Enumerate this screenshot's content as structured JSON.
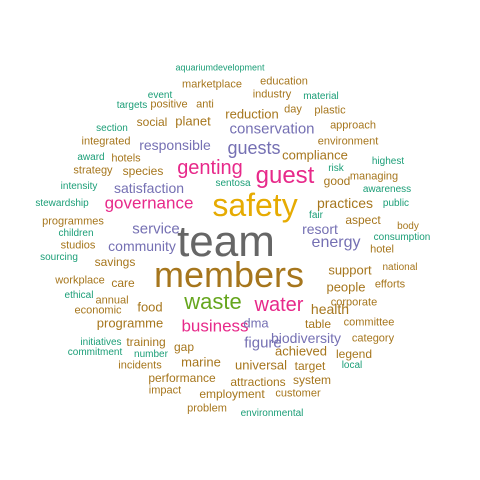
{
  "palette": {
    "teal": "#1b9e77",
    "orange": "#d95f02",
    "purple": "#7570b3",
    "pink": "#e7298a",
    "green": "#66a61e",
    "gold": "#e6ab02",
    "brown": "#a6761d",
    "gray": "#666666"
  },
  "words": [
    {
      "text": "team",
      "color": "gray"
    },
    {
      "text": "members",
      "color": "brown"
    },
    {
      "text": "safety",
      "color": "gold"
    },
    {
      "text": "guest",
      "color": "pink"
    },
    {
      "text": "genting",
      "color": "pink"
    },
    {
      "text": "waste",
      "color": "green"
    },
    {
      "text": "water",
      "color": "pink"
    },
    {
      "text": "business",
      "color": "pink"
    },
    {
      "text": "governance",
      "color": "pink"
    },
    {
      "text": "guests",
      "color": "purple"
    },
    {
      "text": "conservation",
      "color": "purple"
    },
    {
      "text": "energy",
      "color": "purple"
    },
    {
      "text": "service",
      "color": "purple"
    },
    {
      "text": "community",
      "color": "purple"
    },
    {
      "text": "figure",
      "color": "purple"
    },
    {
      "text": "biodiversity",
      "color": "purple"
    },
    {
      "text": "responsible",
      "color": "purple"
    },
    {
      "text": "satisfaction",
      "color": "purple"
    },
    {
      "text": "resort",
      "color": "purple"
    },
    {
      "text": "dma",
      "color": "purple"
    },
    {
      "text": "practices",
      "color": "brown"
    },
    {
      "text": "health",
      "color": "brown"
    },
    {
      "text": "compliance",
      "color": "brown"
    },
    {
      "text": "reduction",
      "color": "brown"
    },
    {
      "text": "planet",
      "color": "brown"
    },
    {
      "text": "species",
      "color": "brown"
    },
    {
      "text": "food",
      "color": "brown"
    },
    {
      "text": "programme",
      "color": "brown"
    },
    {
      "text": "support",
      "color": "brown"
    },
    {
      "text": "people",
      "color": "brown"
    },
    {
      "text": "achieved",
      "color": "brown"
    },
    {
      "text": "training",
      "color": "brown"
    },
    {
      "text": "marine",
      "color": "brown"
    },
    {
      "text": "universal",
      "color": "brown"
    },
    {
      "text": "table",
      "color": "brown"
    },
    {
      "text": "gap",
      "color": "brown"
    },
    {
      "text": "social",
      "color": "brown"
    },
    {
      "text": "good",
      "color": "brown"
    },
    {
      "text": "aspect",
      "color": "brown"
    },
    {
      "text": "savings",
      "color": "brown"
    },
    {
      "text": "care",
      "color": "brown"
    },
    {
      "text": "legend",
      "color": "brown"
    },
    {
      "text": "target",
      "color": "brown"
    },
    {
      "text": "system",
      "color": "brown"
    },
    {
      "text": "attractions",
      "color": "brown"
    },
    {
      "text": "performance",
      "color": "brown"
    },
    {
      "text": "employment",
      "color": "brown"
    },
    {
      "text": "customer",
      "color": "brown"
    },
    {
      "text": "incidents",
      "color": "brown"
    },
    {
      "text": "impact",
      "color": "brown"
    },
    {
      "text": "problem",
      "color": "brown"
    },
    {
      "text": "corporate",
      "color": "brown"
    },
    {
      "text": "committee",
      "color": "brown"
    },
    {
      "text": "annual",
      "color": "brown"
    },
    {
      "text": "economic",
      "color": "brown"
    },
    {
      "text": "integrated",
      "color": "brown"
    },
    {
      "text": "strategy",
      "color": "brown"
    },
    {
      "text": "hotels",
      "color": "brown"
    },
    {
      "text": "managing",
      "color": "brown"
    },
    {
      "text": "environment",
      "color": "brown"
    },
    {
      "text": "plastic",
      "color": "brown"
    },
    {
      "text": "day",
      "color": "brown"
    },
    {
      "text": "industry",
      "color": "brown"
    },
    {
      "text": "education",
      "color": "brown"
    },
    {
      "text": "marketplace",
      "color": "brown"
    },
    {
      "text": "positive",
      "color": "brown"
    },
    {
      "text": "anti",
      "color": "brown"
    },
    {
      "text": "approach",
      "color": "brown"
    },
    {
      "text": "programmes",
      "color": "brown"
    },
    {
      "text": "studios",
      "color": "brown"
    },
    {
      "text": "workplace",
      "color": "brown"
    },
    {
      "text": "hotel",
      "color": "brown"
    },
    {
      "text": "efforts",
      "color": "brown"
    },
    {
      "text": "category",
      "color": "brown"
    },
    {
      "text": "body",
      "color": "brown"
    },
    {
      "text": "national",
      "color": "brown"
    },
    {
      "text": "aquariumdevelopment",
      "color": "teal"
    },
    {
      "text": "event",
      "color": "teal"
    },
    {
      "text": "material",
      "color": "teal"
    },
    {
      "text": "targets",
      "color": "teal"
    },
    {
      "text": "section",
      "color": "teal"
    },
    {
      "text": "award",
      "color": "teal"
    },
    {
      "text": "risk",
      "color": "teal"
    },
    {
      "text": "highest",
      "color": "teal"
    },
    {
      "text": "intensity",
      "color": "teal"
    },
    {
      "text": "sentosa",
      "color": "teal"
    },
    {
      "text": "awareness",
      "color": "teal"
    },
    {
      "text": "stewardship",
      "color": "teal"
    },
    {
      "text": "fair",
      "color": "teal"
    },
    {
      "text": "public",
      "color": "teal"
    },
    {
      "text": "children",
      "color": "teal"
    },
    {
      "text": "consumption",
      "color": "teal"
    },
    {
      "text": "sourcing",
      "color": "teal"
    },
    {
      "text": "ethical",
      "color": "teal"
    },
    {
      "text": "initiatives",
      "color": "teal"
    },
    {
      "text": "commitment",
      "color": "teal"
    },
    {
      "text": "number",
      "color": "teal"
    },
    {
      "text": "local",
      "color": "teal"
    },
    {
      "text": "environmental",
      "color": "teal"
    }
  ]
}
